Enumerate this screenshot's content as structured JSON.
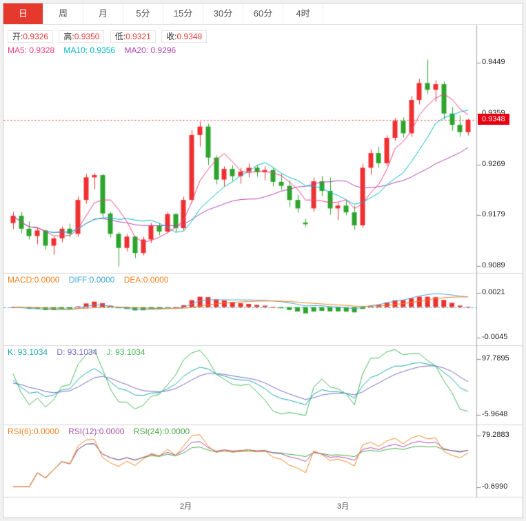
{
  "tabs": [
    {
      "label": "日",
      "active": true
    },
    {
      "label": "周",
      "active": false
    },
    {
      "label": "月",
      "active": false
    },
    {
      "label": "5分",
      "active": false
    },
    {
      "label": "15分",
      "active": false
    },
    {
      "label": "30分",
      "active": false
    },
    {
      "label": "60分",
      "active": false
    },
    {
      "label": "4时",
      "active": false
    }
  ],
  "legend": {
    "ohlc": [
      {
        "label": "开:",
        "value": "0.9326"
      },
      {
        "label": "高:",
        "value": "0.9350"
      },
      {
        "label": "低:",
        "value": "0.9321"
      },
      {
        "label": "收:",
        "value": "0.9348"
      }
    ],
    "ma": [
      "MA5: 0.9328",
      "MA10: 0.9356",
      "MA20: 0.9296"
    ],
    "macd": [
      "MACD:0.0000",
      "DIFF:0.0000",
      "DEA:0.0000"
    ],
    "kdj": [
      "K: 93.1034",
      "D: 93.1034",
      "J: 93.1034"
    ],
    "rsi": [
      "RSI(6):0.0000",
      "RSI(12):0.0000",
      "RSI(24):0.0000"
    ]
  },
  "axes": {
    "main": [
      "0.9449",
      "0.9359",
      "0.9269",
      "0.9179",
      "0.9089"
    ],
    "macd": [
      "0.0021",
      "-0.0045"
    ],
    "kdj": [
      "97.7895",
      "-5.9648"
    ],
    "rsi": [
      "79.2883",
      "-0.6990"
    ]
  },
  "price_badge": "0.9348",
  "x_labels": [
    "2月",
    "3月"
  ],
  "colors": {
    "up": "#f03030",
    "down": "#2ca52c",
    "ma5": "#ec4080",
    "ma10": "#00b7c9",
    "ma20": "#b044b0",
    "diff": "#42a5d8",
    "dea": "#f58220",
    "k": "#1fa8a8",
    "d": "#7b68c8",
    "j": "#46b858",
    "rsi6": "#f58220",
    "rsi12": "#a64ca6",
    "rsi24": "#46a846",
    "price_line": "#f03030",
    "badge_bg": "#e60012",
    "zero_line": "#35b8c8",
    "tab_active_bg": "#e5392e"
  },
  "chart_data": {
    "type": "candlestick",
    "panels": [
      "price+MA",
      "MACD(12,26,9)",
      "KDJ(9,3,3)",
      "RSI(6,12,24)"
    ],
    "current_price": 0.9348,
    "ohlc_last": {
      "open": 0.9326,
      "high": 0.935,
      "low": 0.9321,
      "close": 0.9348
    },
    "main_axis_values": [
      0.9449,
      0.9359,
      0.9269,
      0.9179,
      0.9089
    ],
    "macd_axis_values": [
      0.0021,
      -0.0045
    ],
    "kdj_axis_values": [
      97.7895,
      -5.9648
    ],
    "rsi_axis_values": [
      79.2883,
      -0.699
    ],
    "x_month_labels": [
      "2月",
      "3月"
    ],
    "candles": [
      [
        0.9165,
        0.9185,
        0.9155,
        0.9178
      ],
      [
        0.9178,
        0.9186,
        0.9148,
        0.9155
      ],
      [
        0.9155,
        0.9168,
        0.9136,
        0.9142
      ],
      [
        0.9142,
        0.9158,
        0.9128,
        0.9152
      ],
      [
        0.9152,
        0.9154,
        0.9118,
        0.9125
      ],
      [
        0.9125,
        0.9142,
        0.911,
        0.9138
      ],
      [
        0.9138,
        0.916,
        0.9132,
        0.9155
      ],
      [
        0.9155,
        0.9165,
        0.914,
        0.9146
      ],
      [
        0.9146,
        0.9212,
        0.9142,
        0.9206
      ],
      [
        0.9206,
        0.9252,
        0.92,
        0.9246
      ],
      [
        0.9246,
        0.9254,
        0.9226,
        0.925
      ],
      [
        0.925,
        0.9252,
        0.9176,
        0.9182
      ],
      [
        0.9182,
        0.9186,
        0.914,
        0.9146
      ],
      [
        0.9146,
        0.915,
        0.9089,
        0.9121
      ],
      [
        0.9121,
        0.9146,
        0.9116,
        0.9141
      ],
      [
        0.9141,
        0.9143,
        0.9104,
        0.9112
      ],
      [
        0.9112,
        0.9141,
        0.9108,
        0.9136
      ],
      [
        0.9136,
        0.9166,
        0.913,
        0.9161
      ],
      [
        0.9161,
        0.9166,
        0.9144,
        0.915
      ],
      [
        0.915,
        0.9186,
        0.9147,
        0.9181
      ],
      [
        0.9181,
        0.9183,
        0.915,
        0.9156
      ],
      [
        0.9156,
        0.9212,
        0.9152,
        0.9206
      ],
      [
        0.9206,
        0.9331,
        0.9201,
        0.9321
      ],
      [
        0.9321,
        0.9345,
        0.9301,
        0.9336
      ],
      [
        0.9336,
        0.9341,
        0.9269,
        0.9281
      ],
      [
        0.9281,
        0.9286,
        0.9234,
        0.9242
      ],
      [
        0.9242,
        0.9266,
        0.923,
        0.9261
      ],
      [
        0.9261,
        0.9269,
        0.924,
        0.9248
      ],
      [
        0.9248,
        0.9263,
        0.9236,
        0.9256
      ],
      [
        0.9256,
        0.9271,
        0.9246,
        0.9263
      ],
      [
        0.9263,
        0.9269,
        0.9248,
        0.9255
      ],
      [
        0.9255,
        0.9266,
        0.9241,
        0.9259
      ],
      [
        0.9259,
        0.9263,
        0.923,
        0.9238
      ],
      [
        0.9238,
        0.9253,
        0.9224,
        0.9231
      ],
      [
        0.9231,
        0.9241,
        0.9194,
        0.9206
      ],
      [
        0.9206,
        0.9216,
        0.9184,
        0.9191
      ],
      [
        0.9166,
        0.9173,
        0.9158,
        0.9163
      ],
      [
        0.9191,
        0.9246,
        0.9186,
        0.9239
      ],
      [
        0.9239,
        0.9249,
        0.9214,
        0.9222
      ],
      [
        0.9222,
        0.9246,
        0.9181,
        0.9191
      ],
      [
        0.9191,
        0.9201,
        0.9171,
        0.9196
      ],
      [
        0.9196,
        0.9206,
        0.9179,
        0.9184
      ],
      [
        0.9184,
        0.9196,
        0.9154,
        0.9161
      ],
      [
        0.9161,
        0.9271,
        0.9157,
        0.9263
      ],
      [
        0.9263,
        0.9296,
        0.9251,
        0.9289
      ],
      [
        0.9289,
        0.9301,
        0.9264,
        0.9271
      ],
      [
        0.9271,
        0.9321,
        0.9267,
        0.9316
      ],
      [
        0.9316,
        0.9351,
        0.9311,
        0.9346
      ],
      [
        0.9346,
        0.9353,
        0.9317,
        0.9324
      ],
      [
        0.9324,
        0.9391,
        0.9319,
        0.9383
      ],
      [
        0.9383,
        0.9421,
        0.9376,
        0.9413
      ],
      [
        0.9413,
        0.9455,
        0.9394,
        0.9401
      ],
      [
        0.9401,
        0.9419,
        0.9381,
        0.9411
      ],
      [
        0.9411,
        0.9416,
        0.9349,
        0.9359
      ],
      [
        0.9359,
        0.9371,
        0.9329,
        0.9339
      ],
      [
        0.9339,
        0.9356,
        0.9319,
        0.9326
      ],
      [
        0.9326,
        0.935,
        0.9321,
        0.9348
      ]
    ],
    "indicators": {
      "ma_periods": [
        5,
        10,
        20
      ],
      "macd_params": [
        12,
        26,
        9
      ],
      "kdj_params": [
        9,
        3,
        3
      ],
      "rsi_periods": [
        6,
        12,
        24
      ]
    }
  }
}
